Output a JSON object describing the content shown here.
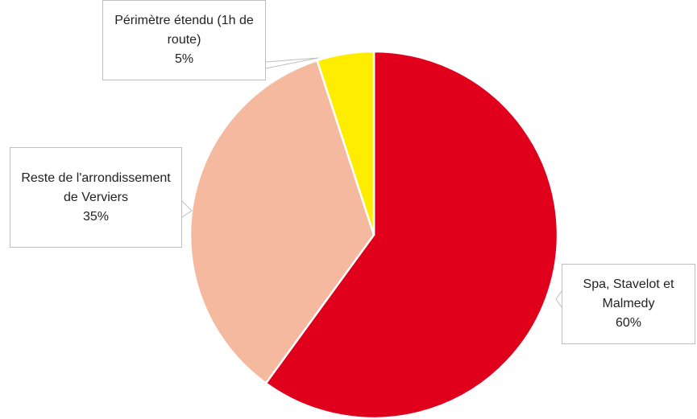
{
  "chart_data": {
    "type": "pie",
    "categories": [
      "Spa, Stavelot et Malmedy",
      "Reste de l'arrondissement de Verviers",
      "Périmètre étendu (1h de route)"
    ],
    "values": [
      60,
      35,
      5
    ],
    "value_labels": [
      "60%",
      "35%",
      "5%"
    ],
    "colors": [
      "#e0001b",
      "#f5b9a0",
      "#ffed00"
    ]
  }
}
